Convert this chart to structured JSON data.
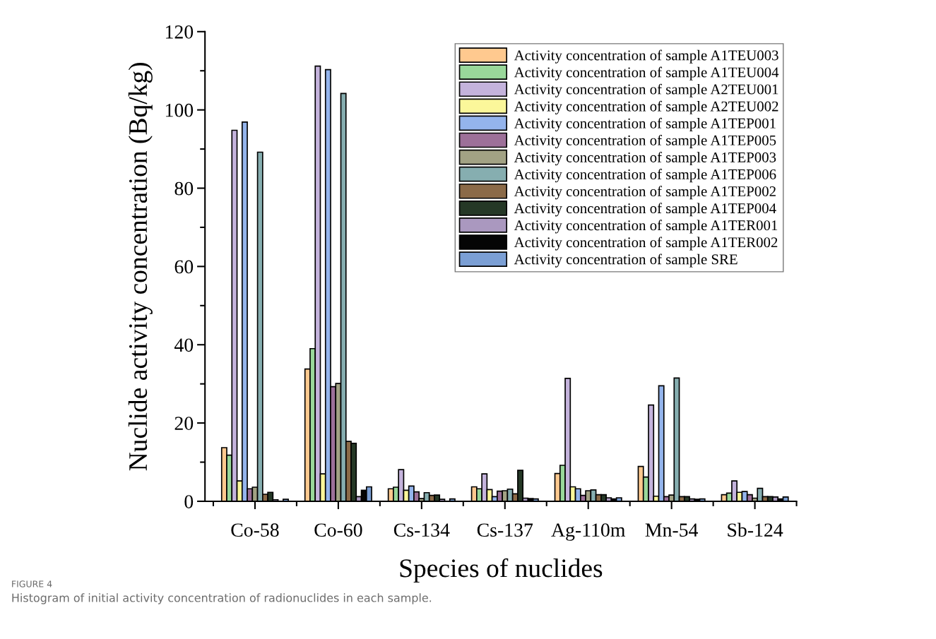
{
  "chart_data": {
    "type": "bar",
    "xlabel": "Species of nuclides",
    "ylabel": "Nuclide activity concentration (Bq/kg)",
    "categories": [
      "Co-58",
      "Co-60",
      "Cs-134",
      "Cs-137",
      "Ag-110m",
      "Mn-54",
      "Sb-124"
    ],
    "series": [
      {
        "name": "Activity concentration of sample A1TEU003",
        "color": "#ffc98f",
        "values": [
          13.7,
          33.8,
          3.2,
          3.7,
          7.1,
          8.9,
          1.7
        ]
      },
      {
        "name": "Activity concentration of sample A1TEU004",
        "color": "#99d89a",
        "values": [
          11.8,
          39,
          3.6,
          3.2,
          9.2,
          6.2,
          2.1
        ]
      },
      {
        "name": "Activity concentration of sample A2TEU001",
        "color": "#c4b3dc",
        "values": [
          94.8,
          111.2,
          8.1,
          7.0,
          31.4,
          24.6,
          5.2
        ]
      },
      {
        "name": "Activity concentration of sample A2TEU002",
        "color": "#fbf79a",
        "values": [
          5.2,
          7.0,
          2.8,
          3.0,
          3.7,
          1.3,
          2.3
        ]
      },
      {
        "name": "Activity concentration of sample A1TEP001",
        "color": "#94b4ec",
        "values": [
          96.9,
          110.3,
          3.9,
          1.2,
          3.2,
          29.5,
          2.5
        ]
      },
      {
        "name": "Activity concentration of sample A1TEP005",
        "color": "#9d7099",
        "values": [
          3.2,
          29.3,
          2.4,
          2.6,
          1.5,
          1.2,
          1.7
        ]
      },
      {
        "name": "Activity concentration of sample A1TEP003",
        "color": "#a2a284",
        "values": [
          3.6,
          30.1,
          0.7,
          2.7,
          2.7,
          1.6,
          0.8
        ]
      },
      {
        "name": "Activity concentration of sample A1TEP006",
        "color": "#86aeb0",
        "values": [
          89.2,
          104.2,
          2.2,
          3.1,
          2.9,
          31.5,
          3.3
        ]
      },
      {
        "name": "Activity concentration of sample A1TEP002",
        "color": "#8b6a48",
        "values": [
          1.8,
          15.3,
          1.5,
          1.9,
          1.7,
          1.2,
          1.2
        ]
      },
      {
        "name": "Activity concentration of sample A1TEP004",
        "color": "#253826",
        "values": [
          2.3,
          14.8,
          1.6,
          7.9,
          1.7,
          1.2,
          1.2
        ]
      },
      {
        "name": "Activity concentration of sample A1TER001",
        "color": "#aa98bf",
        "values": [
          0.4,
          1.2,
          0.5,
          0.8,
          0.9,
          0.6,
          1.1
        ]
      },
      {
        "name": "Activity concentration of sample A1TER002",
        "color": "#050505",
        "values": [
          null,
          2.8,
          null,
          0.7,
          0.6,
          0.5,
          0.6
        ]
      },
      {
        "name": "Activity concentration of sample SRE",
        "color": "#7b9fd4",
        "values": [
          0.5,
          3.7,
          0.6,
          0.6,
          0.9,
          0.6,
          1.1
        ]
      }
    ],
    "ylim": [
      0,
      120
    ],
    "yticks": [
      0,
      20,
      40,
      60,
      80,
      100,
      120
    ],
    "legend": "top right",
    "grid": false,
    "annotations": [
      "FIGURE 4",
      "Histogram of initial activity concentration of radionuclides in each sample."
    ]
  }
}
